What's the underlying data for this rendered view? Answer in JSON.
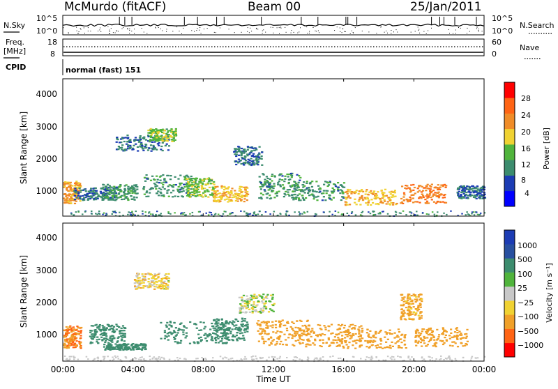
{
  "header": {
    "station": "McMurdo (fitACF)",
    "beam": "Beam 00",
    "date": "25/Jan/2011"
  },
  "top_panels": {
    "nsky_label": "N.Sky",
    "nsky_ticks": [
      "10^5",
      "10^0"
    ],
    "nsearch_label": "N.Search",
    "nsearch_ticks": [
      "10^5",
      "10^0"
    ],
    "freq_label_1": "Freq.",
    "freq_label_2": "[MHz]",
    "freq_ticks": [
      "18",
      "8"
    ],
    "nave_label": "Nave",
    "nave_ticks": [
      "60",
      "0"
    ],
    "cpid_label": "CPID",
    "cpid_value": "normal (fast) 151"
  },
  "colors": {
    "power": [
      "#0000ff",
      "#1c3cb4",
      "#3c8c6e",
      "#50b43c",
      "#f0d232",
      "#f08c28",
      "#ff6414",
      "#ff0000"
    ],
    "velocity": [
      "#1c3cb4",
      "#2850a0",
      "#3c8c6e",
      "#50b43c",
      "#c8c8c8",
      "#f0d232",
      "#f0a028",
      "#ff6414",
      "#ff0000"
    ]
  },
  "chart_data": [
    {
      "type": "heatmap",
      "title": "Power",
      "ylabel": "Slant Range [km]",
      "xlabel": "",
      "x_ticks": [
        "00:00",
        "04:00",
        "08:00",
        "12:00",
        "16:00",
        "20:00",
        "00:00"
      ],
      "y_ticks": [
        "4000",
        "3000",
        "2000",
        "1000"
      ],
      "ylim": [
        180,
        4500
      ],
      "colorbar": {
        "label": "Power [dB]",
        "ticks": [
          "28",
          "24",
          "20",
          "16",
          "12",
          "8",
          "4"
        ],
        "range": [
          0,
          30
        ]
      },
      "blobs": [
        {
          "t": 0.5,
          "r": 950,
          "dt": 0.5,
          "dr": 350,
          "v": 20
        },
        {
          "t": 1.8,
          "r": 900,
          "dt": 1.2,
          "dr": 200,
          "v": 8
        },
        {
          "t": 3.2,
          "r": 950,
          "dt": 1.0,
          "dr": 250,
          "v": 10
        },
        {
          "t": 4.5,
          "r": 2500,
          "dt": 1.5,
          "dr": 250,
          "v": 8
        },
        {
          "t": 5.6,
          "r": 2750,
          "dt": 0.8,
          "dr": 200,
          "v": 14
        },
        {
          "t": 6.0,
          "r": 1150,
          "dt": 1.5,
          "dr": 350,
          "v": 10
        },
        {
          "t": 7.8,
          "r": 1100,
          "dt": 0.8,
          "dr": 300,
          "v": 14
        },
        {
          "t": 9.5,
          "r": 900,
          "dt": 1.0,
          "dr": 250,
          "v": 18
        },
        {
          "t": 10.5,
          "r": 2100,
          "dt": 0.8,
          "dr": 300,
          "v": 8
        },
        {
          "t": 12.3,
          "r": 1150,
          "dt": 1.2,
          "dr": 400,
          "v": 10
        },
        {
          "t": 14.5,
          "r": 1000,
          "dt": 1.5,
          "dr": 300,
          "v": 10
        },
        {
          "t": 17.5,
          "r": 800,
          "dt": 1.5,
          "dr": 250,
          "v": 18
        },
        {
          "t": 20.5,
          "r": 900,
          "dt": 1.3,
          "dr": 300,
          "v": 22
        },
        {
          "t": 23.2,
          "r": 950,
          "dt": 0.8,
          "dr": 200,
          "v": 8
        }
      ]
    },
    {
      "type": "heatmap",
      "title": "Velocity",
      "ylabel": "Slant Range [km]",
      "xlabel": "Time UT",
      "x_ticks": [
        "00:00",
        "04:00",
        "08:00",
        "12:00",
        "16:00",
        "20:00",
        "00:00"
      ],
      "y_ticks": [
        "4000",
        "3000",
        "2000",
        "1000"
      ],
      "ylim": [
        180,
        4500
      ],
      "colorbar": {
        "label": "Velocity [m s⁻¹]",
        "ticks": [
          "1000",
          "500",
          "100",
          "25",
          "−25",
          "−100",
          "−500",
          "−1000"
        ],
        "range": [
          -1000,
          1000
        ]
      },
      "blobs": [
        {
          "t": 0.5,
          "r": 950,
          "dt": 0.5,
          "dr": 350,
          "v": -500
        },
        {
          "t": 2.5,
          "r": 1050,
          "dt": 1.0,
          "dr": 300,
          "v": 300
        },
        {
          "t": 3.5,
          "r": 650,
          "dt": 1.2,
          "dr": 100,
          "v": 200
        },
        {
          "t": 5.0,
          "r": 2700,
          "dt": 1.0,
          "dr": 250,
          "v": -50
        },
        {
          "t": 7.5,
          "r": 1100,
          "dt": 2.0,
          "dr": 350,
          "v": 300
        },
        {
          "t": 9.5,
          "r": 1200,
          "dt": 1.0,
          "dr": 350,
          "v": 250
        },
        {
          "t": 11.0,
          "r": 2000,
          "dt": 1.0,
          "dr": 300,
          "v": 10
        },
        {
          "t": 12.5,
          "r": 1100,
          "dt": 1.5,
          "dr": 400,
          "v": -300
        },
        {
          "t": 15.0,
          "r": 1000,
          "dt": 2.0,
          "dr": 350,
          "v": -300
        },
        {
          "t": 17.5,
          "r": 900,
          "dt": 2.0,
          "dr": 300,
          "v": -250
        },
        {
          "t": 19.8,
          "r": 1900,
          "dt": 0.6,
          "dr": 400,
          "v": -150
        },
        {
          "t": 21.5,
          "r": 950,
          "dt": 1.5,
          "dr": 300,
          "v": -300
        }
      ]
    }
  ]
}
